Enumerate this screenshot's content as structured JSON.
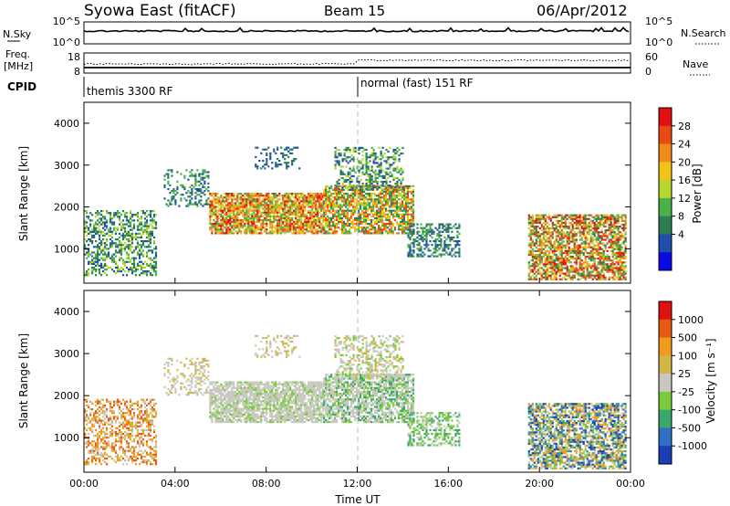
{
  "header": {
    "station": "Syowa East (fitACF)",
    "beam": "Beam 15",
    "date": "06/Apr/2012"
  },
  "top_panel": {
    "left_label": "N.Sky",
    "right_label": "N.Search",
    "left_ticks": [
      "10^5",
      "10^0"
    ],
    "right_ticks": [
      "10^5",
      "10^0"
    ]
  },
  "freq_panel": {
    "left_label_line1": "Freq.",
    "left_label_line2": "[MHz]",
    "right_label": "Nave",
    "left_ticks": [
      "18",
      "8"
    ],
    "right_ticks": [
      "60",
      "0"
    ]
  },
  "cpid_panel": {
    "label": "CPID",
    "segments": [
      "themis 3300 RF",
      "normal (fast) 151 RF"
    ]
  },
  "colors": {
    "power_scale": [
      "#0a0ae6",
      "#1f4fa8",
      "#2e7d55",
      "#4bb04a",
      "#b7d62e",
      "#f2c21b",
      "#f28a1a",
      "#e84a14",
      "#e01010"
    ],
    "velocity_scale": [
      "#1a3db8",
      "#2f6fc4",
      "#3aa86a",
      "#7acb3c",
      "#c8c8c0",
      "#d2b64a",
      "#f09a1e",
      "#e85a14",
      "#e01010"
    ]
  },
  "chart_data": [
    {
      "type": "heatmap",
      "name": "power",
      "ylabel": "Slant Range [km]",
      "xlabel": "",
      "xlim": [
        0,
        24
      ],
      "ylim": [
        180,
        4500
      ],
      "ytick_labels": [
        "1000",
        "2000",
        "3000",
        "4000"
      ],
      "xtick_labels": [
        "00:00",
        "04:00",
        "08:00",
        "12:00",
        "16:00",
        "20:00",
        "00:00"
      ],
      "colorbar": {
        "label": "Power [dB]",
        "range": [
          0,
          30
        ],
        "tick_labels": [
          "28",
          "24",
          "20",
          "16",
          "12",
          "8",
          "4"
        ]
      }
    },
    {
      "type": "heatmap",
      "name": "velocity",
      "ylabel": "Slant Range [km]",
      "xlabel": "Time UT",
      "xlim": [
        0,
        24
      ],
      "ylim": [
        180,
        4500
      ],
      "ytick_labels": [
        "1000",
        "2000",
        "3000",
        "4000"
      ],
      "xtick_labels": [
        "00:00",
        "04:00",
        "08:00",
        "12:00",
        "16:00",
        "20:00",
        "00:00"
      ],
      "colorbar": {
        "label": "Velocity [m s⁻¹]",
        "tick_labels": [
          "1000",
          "500",
          "100",
          "25",
          "-25",
          "-100",
          "-500",
          "-1000"
        ]
      }
    }
  ]
}
